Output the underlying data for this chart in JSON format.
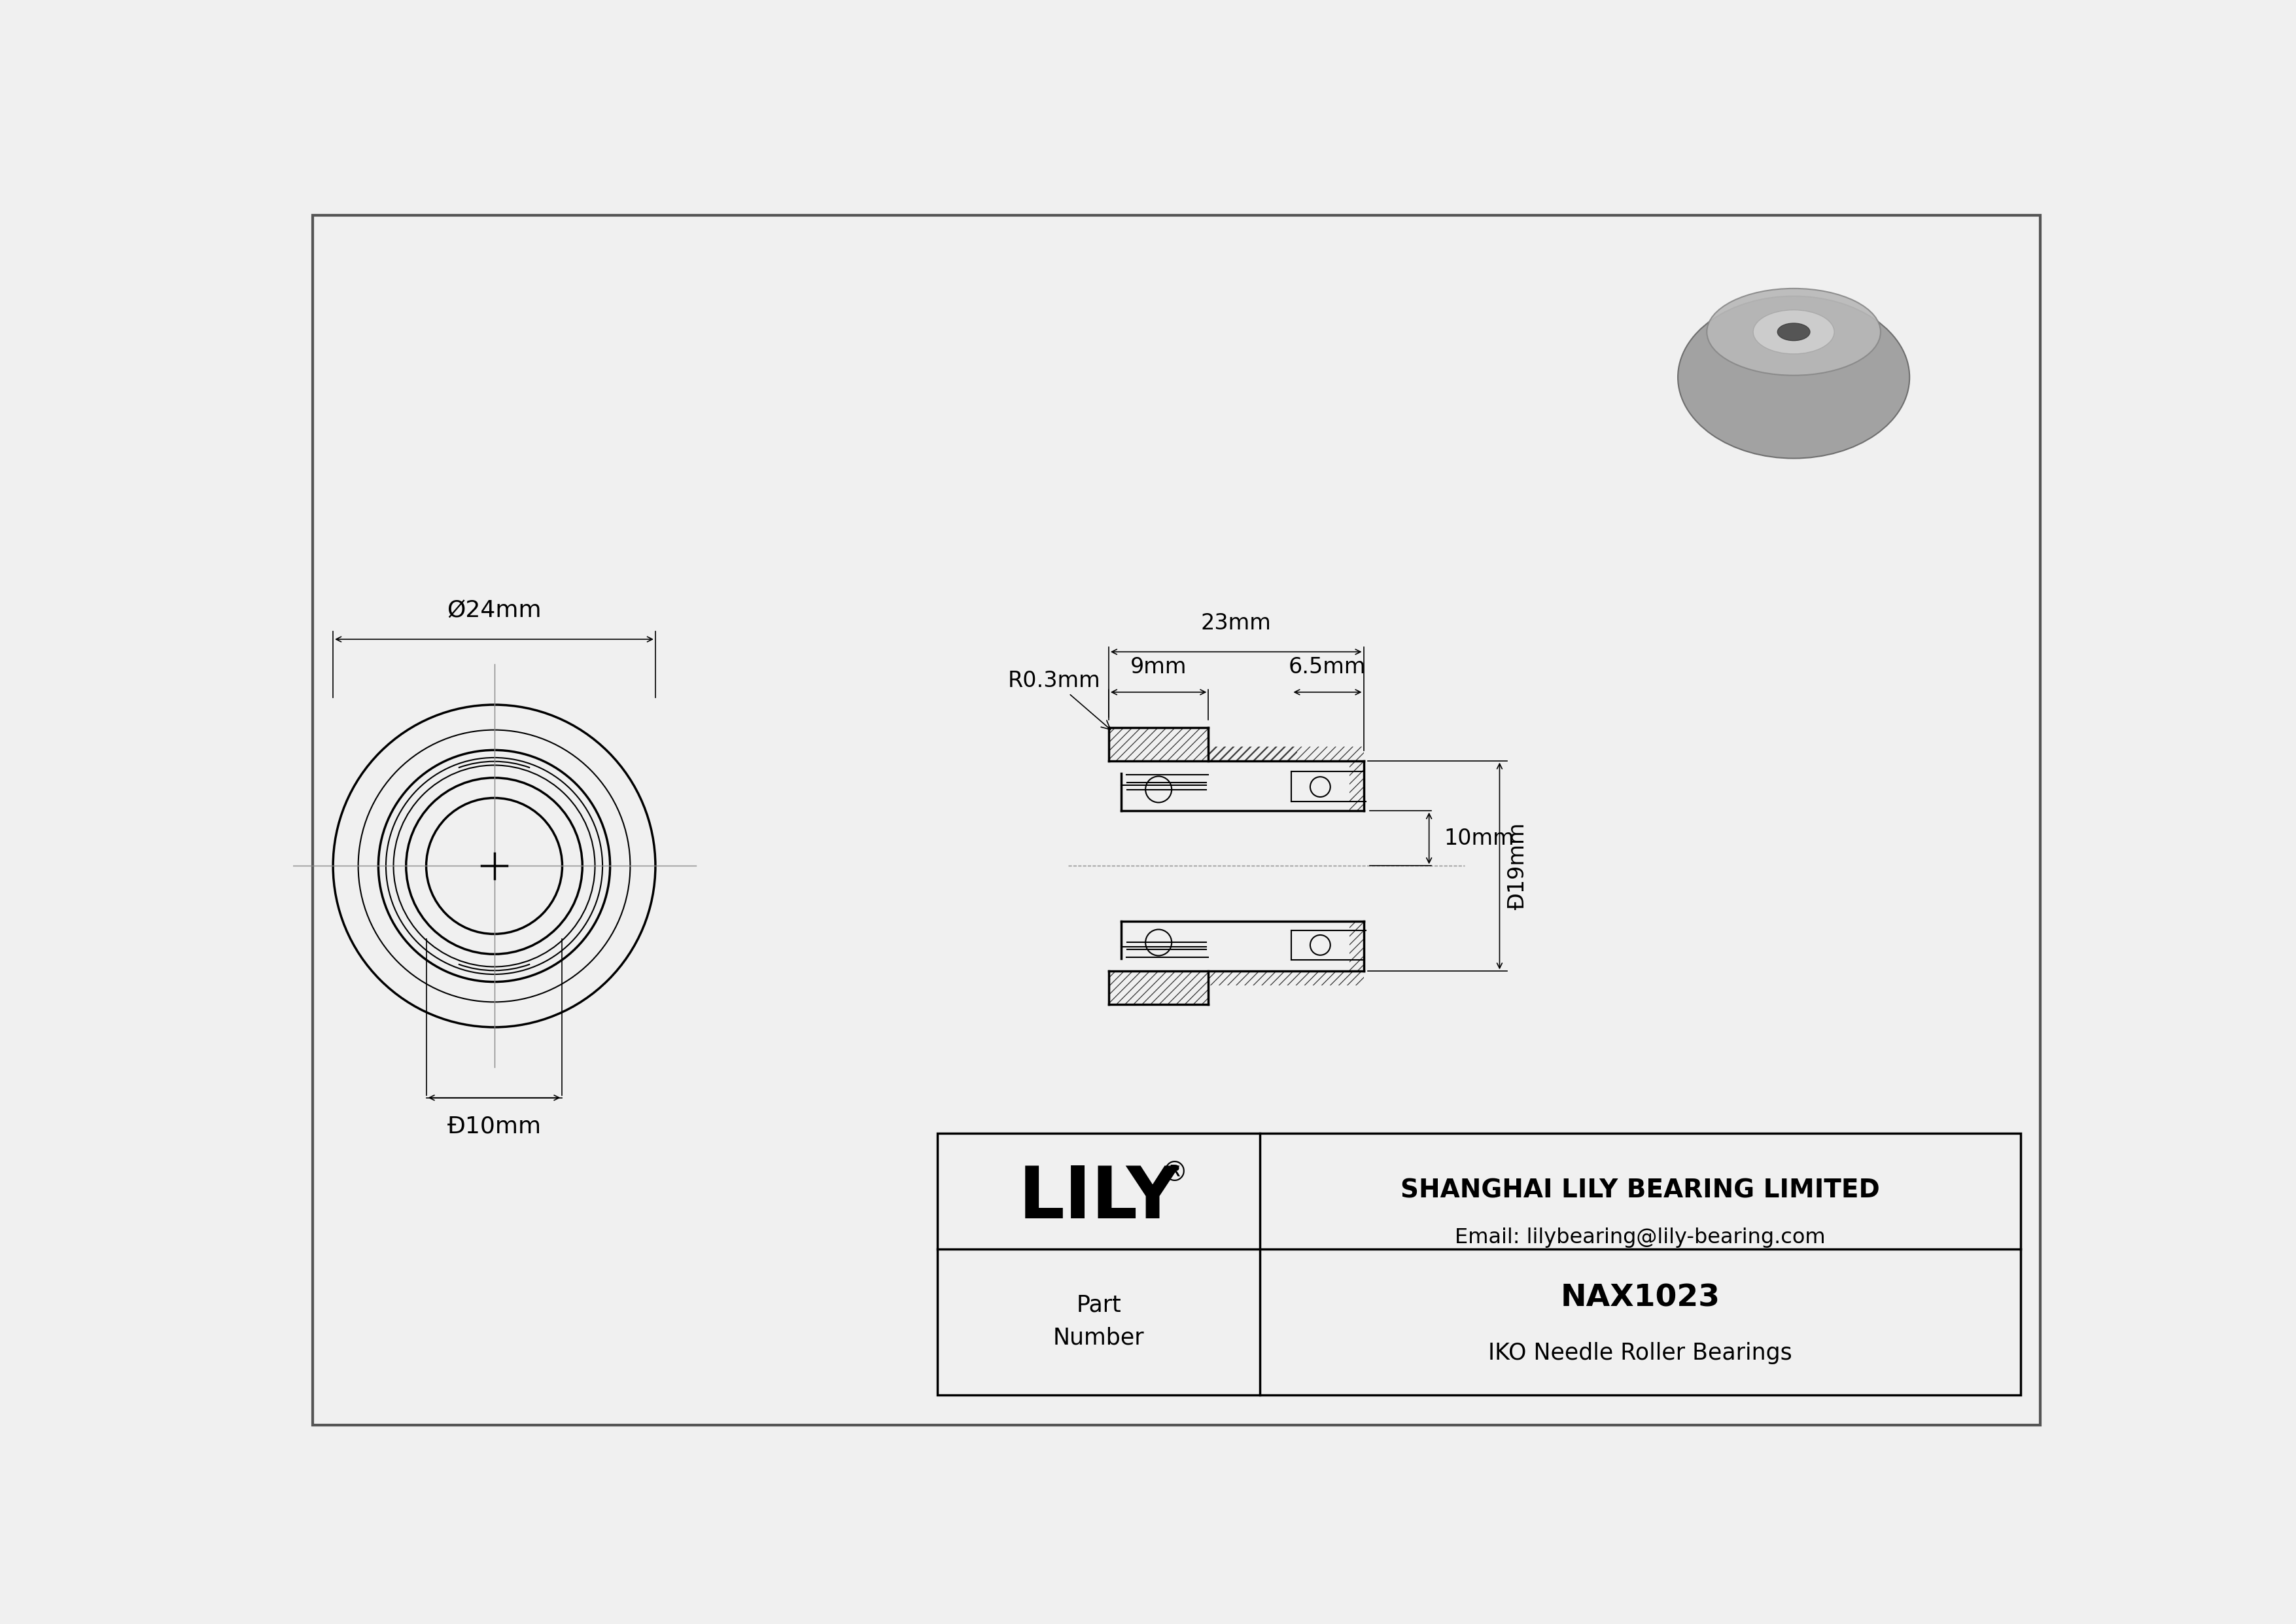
{
  "bg_color": "#f0f0f0",
  "line_color": "#000000",
  "dim_color": "#000000",
  "title_block": {
    "company": "SHANGHAI LILY BEARING LIMITED",
    "email": "Email: lilybearing@lily-bearing.com",
    "logo": "LILY",
    "logo_superscript": "®",
    "part_label": "Part\nNumber",
    "part_number": "NAX1023",
    "part_desc": "IKO Needle Roller Bearings"
  },
  "dims": {
    "outer_dia": "Ø24mm",
    "inner_dia": "Ð10mm",
    "total_width": "23mm",
    "needle_width": "9mm",
    "thrust_width": "6.5mm",
    "bore_dia": "Ð19mm",
    "height": "10mm",
    "radius": "R0.3mm"
  }
}
